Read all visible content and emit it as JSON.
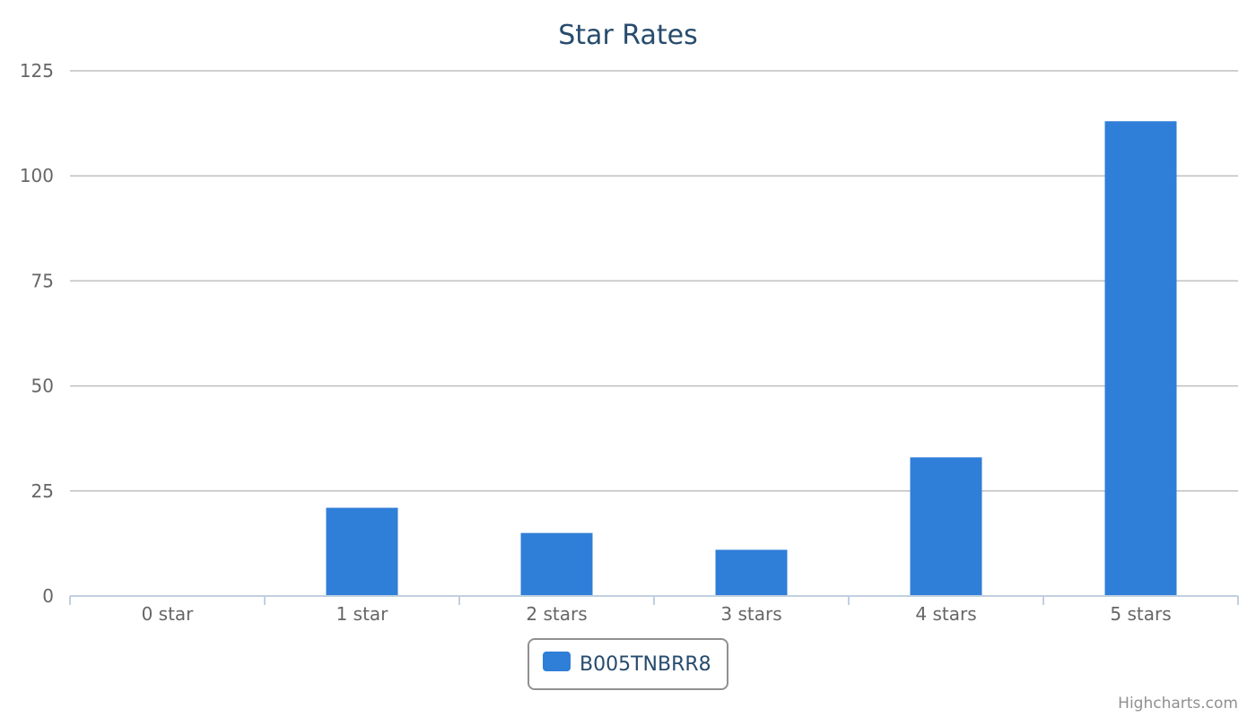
{
  "chart_data": {
    "type": "bar",
    "title": "Star Rates",
    "categories": [
      "0 star",
      "1 star",
      "2 stars",
      "3 stars",
      "4 stars",
      "5 stars"
    ],
    "series": [
      {
        "name": "B005TNBRR8",
        "values": [
          0,
          21,
          15,
          11,
          33,
          113
        ],
        "color": "#2f7ed8"
      }
    ],
    "ylim": [
      0,
      125
    ],
    "yticks": [
      0,
      25,
      50,
      75,
      100,
      125
    ],
    "grid": true,
    "legend_position": "bottom-center"
  },
  "credits": "Highcharts.com"
}
